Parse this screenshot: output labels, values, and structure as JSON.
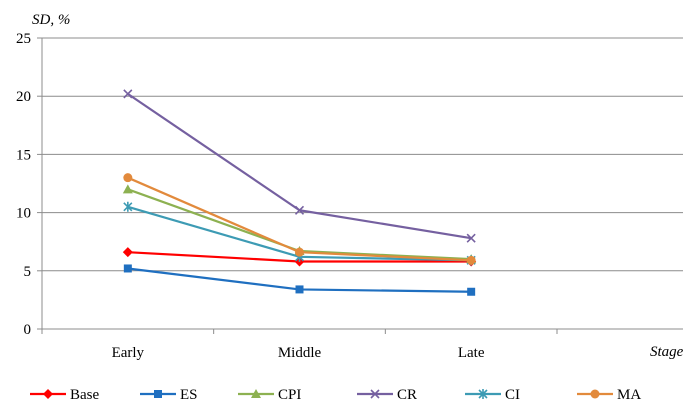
{
  "chart_data": {
    "type": "line",
    "title": "",
    "xlabel": "Stage",
    "ylabel": "SD, %",
    "categories": [
      "Early",
      "Middle",
      "Late"
    ],
    "ylim": [
      0,
      25
    ],
    "yticks": [
      0,
      5,
      10,
      15,
      20,
      25
    ],
    "grid": true,
    "legend": "bottom",
    "series": [
      {
        "name": "Base",
        "values": [
          6.6,
          5.8,
          5.8
        ],
        "color": "#ff0000",
        "marker": "diamond"
      },
      {
        "name": "ES",
        "values": [
          5.2,
          3.4,
          3.2
        ],
        "color": "#1f6fc0",
        "marker": "square"
      },
      {
        "name": "CPI",
        "values": [
          12.0,
          6.7,
          6.0
        ],
        "color": "#8db151",
        "marker": "triangle"
      },
      {
        "name": "CR",
        "values": [
          20.2,
          10.2,
          7.8
        ],
        "color": "#7560a0",
        "marker": "x"
      },
      {
        "name": "CI",
        "values": [
          10.5,
          6.2,
          5.9
        ],
        "color": "#3d9bb4",
        "marker": "star"
      },
      {
        "name": "MA",
        "values": [
          13.0,
          6.6,
          5.9
        ],
        "color": "#e28a3c",
        "marker": "circle"
      }
    ]
  }
}
